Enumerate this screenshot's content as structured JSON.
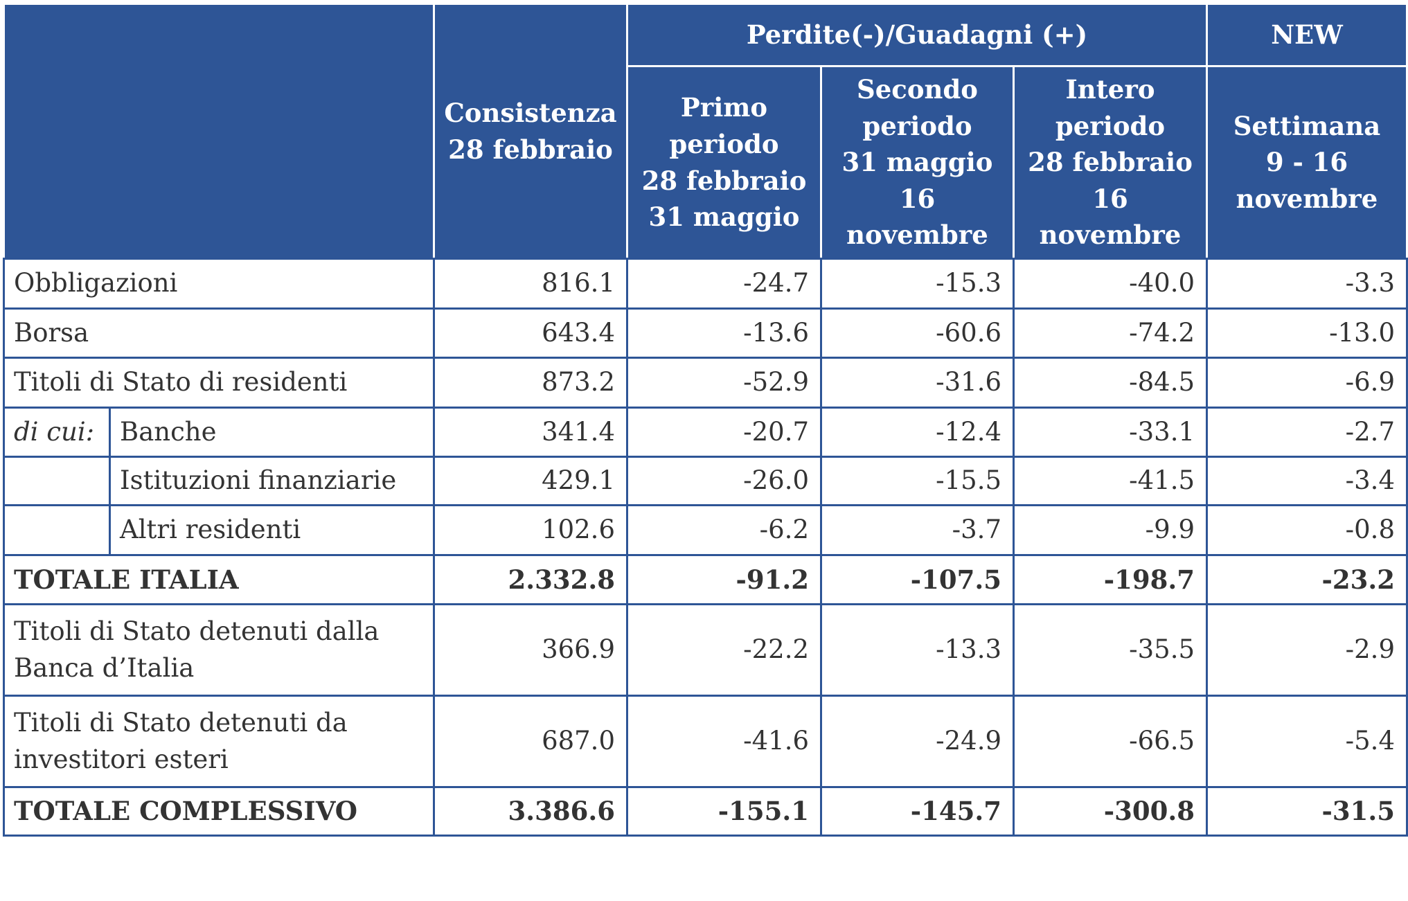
{
  "header": {
    "group": "Perdite(-)/Guadagni (+)",
    "new": "NEW",
    "columns": [
      [
        "Consistenza",
        "28 febbraio"
      ],
      [
        "Primo",
        "periodo",
        "28 febbraio",
        "31 maggio"
      ],
      [
        "Secondo",
        "periodo",
        "31 maggio",
        "16",
        "novembre"
      ],
      [
        "Intero",
        "periodo",
        "28 febbraio",
        "16",
        "novembre"
      ],
      [
        "Settimana",
        "9 - 16",
        "novembre"
      ]
    ]
  },
  "table": {
    "rows": [
      {
        "label": "Obbligazioni",
        "values": [
          "816.1",
          "-24.7",
          "-15.3",
          "-40.0",
          "-3.3"
        ]
      },
      {
        "label": "Borsa",
        "values": [
          "643.4",
          "-13.6",
          "-60.6",
          "-74.2",
          "-13.0"
        ]
      },
      {
        "label": "Titoli di Stato di residenti",
        "values": [
          "873.2",
          "-52.9",
          "-31.6",
          "-84.5",
          "-6.9"
        ]
      },
      {
        "prefix": "di cui:",
        "label": "Banche",
        "values": [
          "341.4",
          "-20.7",
          "-12.4",
          "-33.1",
          "-2.7"
        ]
      },
      {
        "label": "Istituzioni finanziarie",
        "values": [
          "429.1",
          "-26.0",
          "-15.5",
          "-41.5",
          "-3.4"
        ]
      },
      {
        "label": "Altri residenti",
        "values": [
          "102.6",
          "-6.2",
          "-3.7",
          "-9.9",
          "-0.8"
        ]
      },
      {
        "label": "TOTALE ITALIA",
        "values": [
          "2.332.8",
          "-91.2",
          "-107.5",
          "-198.7",
          "-23.2"
        ]
      },
      {
        "label": "Titoli di Stato detenuti dalla Banca d’Italia",
        "values": [
          "366.9",
          "-22.2",
          "-13.3",
          "-35.5",
          "-2.9"
        ]
      },
      {
        "label": "Titoli di Stato detenuti da investitori esteri",
        "values": [
          "687.0",
          "-41.6",
          "-24.9",
          "-66.5",
          "-5.4"
        ]
      },
      {
        "label": "TOTALE COMPLESSIVO",
        "values": [
          "3.386.6",
          "-155.1",
          "-145.7",
          "-300.8",
          "-31.5"
        ]
      }
    ]
  }
}
